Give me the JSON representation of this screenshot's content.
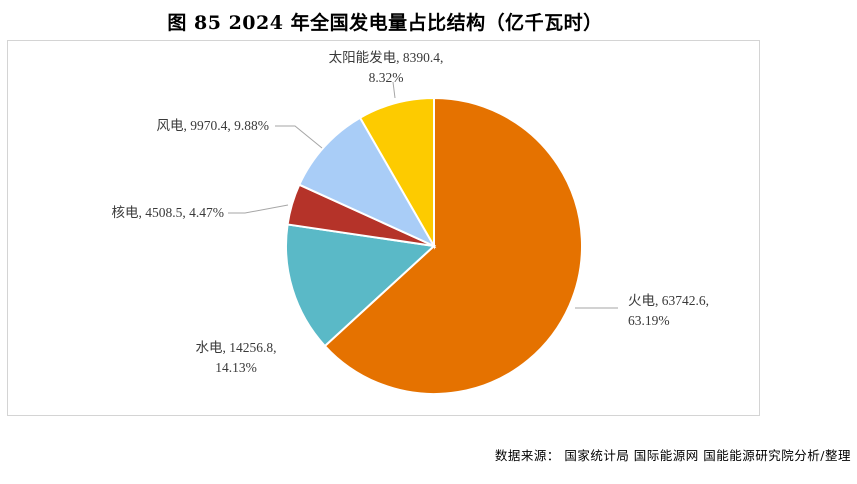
{
  "title": "图 85 2024 年全国发电量占比结构（亿千瓦时）",
  "source": "数据来源： 国家统计局 国际能源网 国能能源研究院分析/整理",
  "chart_data": {
    "type": "pie",
    "title": "2024 年全国发电量占比结构（亿千瓦时）",
    "unit": "亿千瓦时",
    "start_category": "火电",
    "direction": "clockwise",
    "slices": [
      {
        "name": "火电",
        "value": 63742.6,
        "percent": "63.19%",
        "color": "#e57200",
        "label_lines": [
          "火电, 63742.6,",
          "63.19%"
        ]
      },
      {
        "name": "水电",
        "value": 14256.8,
        "percent": "14.13%",
        "color": "#5ab9c7",
        "label_lines": [
          "水电, 14256.8,",
          "14.13%"
        ]
      },
      {
        "name": "核电",
        "value": 4508.5,
        "percent": "4.47%",
        "color": "#b53329",
        "label_lines": [
          "核电, 4508.5, 4.47%"
        ]
      },
      {
        "name": "风电",
        "value": 9970.4,
        "percent": "9.88%",
        "color": "#a9cdf7",
        "label_lines": [
          "风电, 9970.4, 9.88%"
        ]
      },
      {
        "name": "太阳能发电",
        "value": 8390.4,
        "percent": "8.32%",
        "color": "#fdcb00",
        "label_lines": [
          "太阳能发电, 8390.4,",
          "8.32%"
        ]
      }
    ]
  }
}
